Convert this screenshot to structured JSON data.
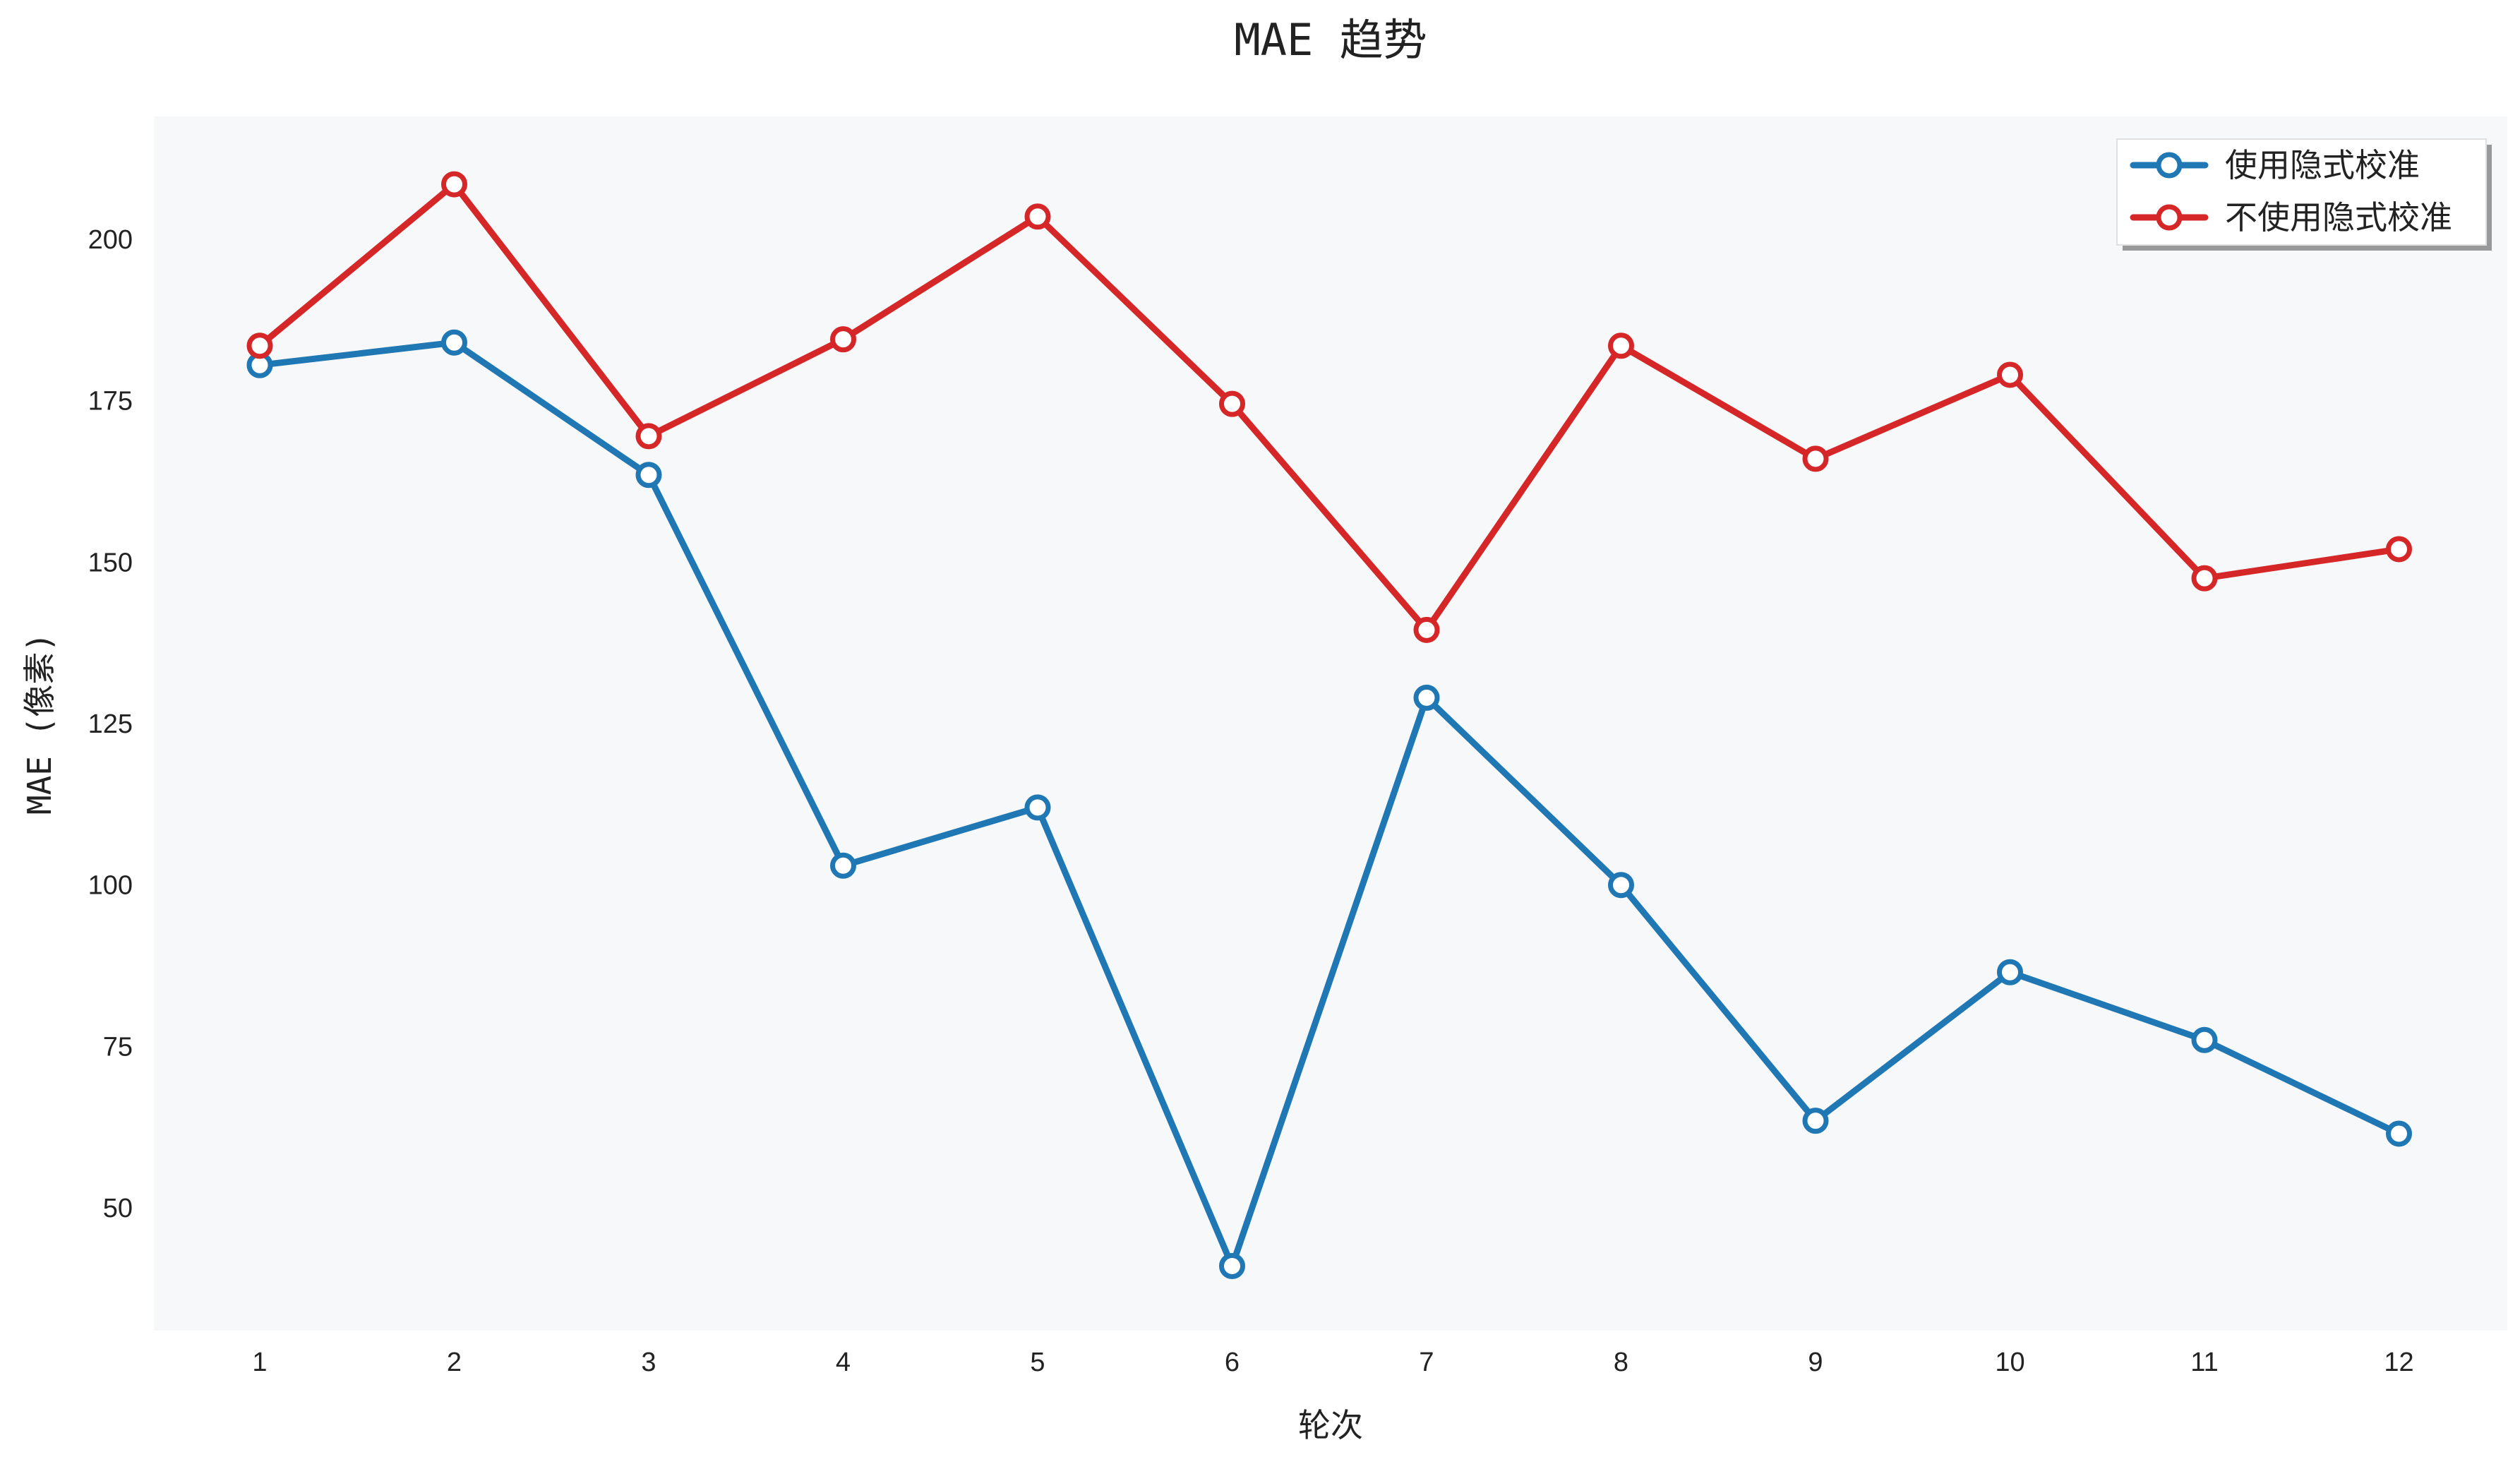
{
  "chart_data": {
    "type": "line",
    "title": "MAE 趋势",
    "xlabel": "轮次",
    "ylabel": "MAE (像素)",
    "categories": [
      "1",
      "2",
      "3",
      "4",
      "5",
      "6",
      "7",
      "8",
      "9",
      "10",
      "11",
      "12"
    ],
    "yticks": [
      "50",
      "75",
      "100",
      "125",
      "150",
      "175",
      "200"
    ],
    "ylim": [
      31,
      219
    ],
    "grid": false,
    "legend_position": "top-right",
    "background": "#f7f8fa",
    "series": [
      {
        "name": "使用隐式校准",
        "color": "#1f77b4",
        "values": [
          180.5,
          184,
          163.5,
          103,
          112,
          41,
          129,
          100,
          63.5,
          86.5,
          76,
          61.5
        ]
      },
      {
        "name": "不使用隐式校准",
        "color": "#d62728",
        "values": [
          183.5,
          208.5,
          169.5,
          184.5,
          203.5,
          174.5,
          139.5,
          183.5,
          166,
          179,
          147.5,
          152
        ]
      }
    ]
  }
}
